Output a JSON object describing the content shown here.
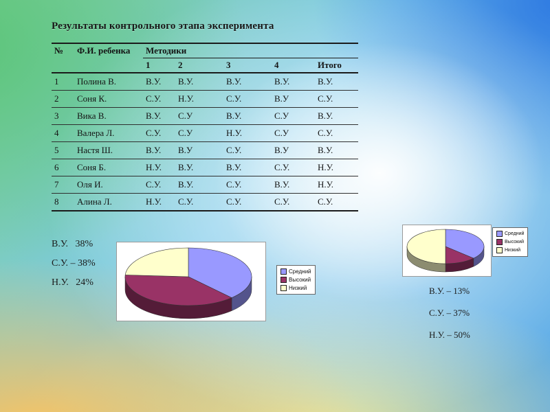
{
  "slide": {
    "title": "Результаты контрольного этапа эксперимента"
  },
  "table": {
    "header": {
      "no": "№",
      "name": "Ф.И. ребенка",
      "methods": "Методики",
      "cols": [
        "1",
        "2",
        "3",
        "4",
        "Итого"
      ]
    },
    "rows": [
      {
        "no": "1",
        "name": "Полина В.",
        "values": [
          "В.У.",
          "В.У.",
          "В.У.",
          "В.У.",
          "В.У."
        ]
      },
      {
        "no": "2",
        "name": "Соня К.",
        "values": [
          "С.У.",
          "Н.У.",
          "С.У.",
          "В.У",
          "С.У."
        ]
      },
      {
        "no": "3",
        "name": "Вика В.",
        "values": [
          "В.У.",
          "С.У",
          "В.У.",
          "С.У",
          "В.У."
        ]
      },
      {
        "no": "4",
        "name": "Валера Л.",
        "values": [
          "С.У.",
          "С.У",
          "Н.У.",
          "С.У",
          "С.У."
        ]
      },
      {
        "no": "5",
        "name": "Настя Ш.",
        "values": [
          "В.У.",
          "В.У",
          "С.У.",
          "В.У",
          "В.У."
        ]
      },
      {
        "no": "6",
        "name": "Соня Б.",
        "values": [
          "Н.У.",
          "В.У.",
          "В.У.",
          "С.У.",
          "Н.У."
        ]
      },
      {
        "no": "7",
        "name": "Оля И.",
        "values": [
          "С.У.",
          "В.У.",
          "С.У.",
          "В.У.",
          "Н.У."
        ]
      },
      {
        "no": "8",
        "name": "Алина Л.",
        "values": [
          "Н.У.",
          "С.У.",
          "С.У.",
          "С.У.",
          "С.У."
        ]
      }
    ]
  },
  "left_stats": [
    "В.У.   38%",
    "С.У. – 38%",
    "Н.У.   24%"
  ],
  "right_stats": [
    "В.У. – 13%",
    "С.У. – 37%",
    "Н.У. – 50%"
  ],
  "chart_data": [
    {
      "type": "pie",
      "style": "3d",
      "title": "",
      "legend_position": "right",
      "labels": [
        "Средний",
        "Высокий",
        "Низкий"
      ],
      "values": [
        38,
        38,
        24
      ],
      "colors": [
        "#9999FF",
        "#993366",
        "#FFFFCC"
      ]
    },
    {
      "type": "pie",
      "style": "3d",
      "title": "",
      "legend_position": "right",
      "labels": [
        "Средний",
        "Высокий",
        "Низкий"
      ],
      "values": [
        37,
        13,
        50
      ],
      "colors": [
        "#9999FF",
        "#993366",
        "#FFFFCC"
      ]
    }
  ]
}
